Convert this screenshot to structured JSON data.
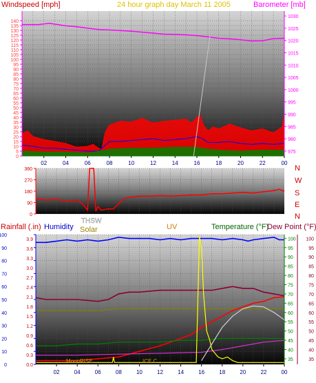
{
  "chart_data": [
    {
      "type": "line",
      "panel": "wind-barometer",
      "title": "24 hour graph day   March 11 2005",
      "left_axis_label": "Windspeed [mph]",
      "right_axis_label": "Barometer [mb]",
      "left_ticks": [
        0,
        5,
        10,
        15,
        20,
        25,
        30,
        35,
        40,
        45,
        50,
        55,
        60,
        65,
        70,
        75,
        80,
        85,
        90,
        95,
        100,
        105,
        110,
        115,
        120,
        125,
        130,
        135,
        140
      ],
      "right_ticks": [
        975,
        980,
        985,
        990,
        995,
        1000,
        1005,
        1010,
        1015,
        1020,
        1025,
        1030
      ],
      "ylim_left": [
        0,
        150
      ],
      "ylim_right": [
        973,
        1032
      ],
      "x_ticks": [
        "02",
        "04",
        "06",
        "08",
        "10",
        "12",
        "14",
        "16",
        "18",
        "20",
        "22",
        "00"
      ],
      "xlim_hours": [
        0,
        24
      ],
      "series": [
        {
          "role": "barometer",
          "color": "#ff00ff",
          "axis": "right",
          "x": [
            0,
            1.5,
            2.5,
            4,
            5,
            7,
            8,
            10,
            12,
            13,
            14,
            15,
            16,
            17,
            18,
            19,
            20,
            21,
            22,
            23,
            24
          ],
          "y": [
            1026.5,
            1026.5,
            1027,
            1026,
            1025.6,
            1024.5,
            1024.3,
            1023.8,
            1023,
            1022.6,
            1022.5,
            1022.3,
            1022,
            1021.5,
            1020.9,
            1020.7,
            1020.3,
            1019.8,
            1019.9,
            1020.8,
            1020.9
          ]
        },
        {
          "role": "gust",
          "color": "#ff0000",
          "axis": "left",
          "fill": true,
          "x": [
            0,
            0.5,
            1,
            2,
            3,
            4,
            5,
            6,
            6.5,
            7,
            7.3,
            7.6,
            8,
            9,
            10,
            11,
            12,
            13,
            14,
            15,
            15.5,
            16,
            16.3,
            16.6,
            17,
            17.5,
            18,
            19,
            20,
            21,
            22,
            23,
            23.8,
            24
          ],
          "y": [
            23,
            26,
            20,
            17,
            15,
            13,
            9,
            10,
            12,
            8,
            7,
            24,
            32,
            36,
            35,
            39,
            34,
            36,
            37,
            38,
            34,
            40,
            42,
            32,
            26,
            30,
            28,
            33,
            29,
            26,
            28,
            24,
            30,
            42
          ]
        },
        {
          "role": "wind-speed",
          "color": "#0000ff",
          "axis": "left",
          "x": [
            0,
            1,
            2,
            3,
            4,
            5,
            6,
            7,
            7.6,
            8,
            9,
            10,
            11,
            12,
            13,
            14,
            15,
            16,
            16.5,
            17,
            18,
            19,
            20,
            21,
            22,
            23,
            24
          ],
          "y": [
            11,
            10,
            8,
            8,
            7,
            6,
            5,
            5,
            11,
            15,
            15,
            16,
            17,
            18,
            16,
            17,
            18,
            20,
            18,
            14,
            14,
            15,
            13,
            12,
            13,
            12,
            13
          ]
        },
        {
          "role": "wind-chill",
          "color": "#008000",
          "axis": "left",
          "fill": true,
          "x": [
            0,
            2,
            4,
            6,
            7.6,
            8,
            10,
            12,
            14,
            16,
            17,
            18,
            20,
            22,
            24
          ],
          "y": [
            5,
            4,
            4,
            3,
            6,
            7,
            8,
            8,
            9,
            9,
            7,
            6,
            5,
            6,
            6
          ]
        }
      ]
    },
    {
      "type": "line",
      "panel": "wind-direction",
      "left_ticks": [
        0,
        90,
        180,
        270,
        360
      ],
      "direction_labels": [
        "N",
        "W",
        "S",
        "E",
        "N"
      ],
      "ylim": [
        0,
        360
      ],
      "series": [
        {
          "role": "wind-direction",
          "color": "#ff0000",
          "x": [
            0,
            1,
            2,
            3,
            4,
            4.5,
            5,
            5.2,
            5.3,
            5.6,
            5.8,
            6,
            6.3,
            6.6,
            7,
            7.5,
            8,
            8.5,
            9,
            10,
            11,
            12,
            13,
            14,
            15,
            16,
            17,
            18,
            19,
            20,
            21,
            22,
            23,
            23.5,
            24
          ],
          "y": [
            120,
            110,
            115,
            100,
            110,
            80,
            30,
            360,
            360,
            360,
            20,
            60,
            30,
            35,
            40,
            40,
            80,
            120,
            130,
            140,
            140,
            145,
            140,
            145,
            150,
            150,
            160,
            160,
            165,
            170,
            165,
            175,
            185,
            195,
            180
          ]
        }
      ]
    },
    {
      "type": "line",
      "panel": "rain-humidity-temperature",
      "labels": {
        "rainfall": "Rainfall (.in)",
        "humidity": "Humidity",
        "thsw": "THSW",
        "solar": "Solar",
        "uv": "UV",
        "temperature": "Temperature (°F)",
        "dew_point": "Dew Point (°F)",
        "moonrise": "MoonRISE",
        "moon_marker": "ICE C"
      },
      "rain_ticks": [
        0,
        0.3,
        0.6,
        0.9,
        1.2,
        1.5,
        1.8,
        2.1,
        2.4,
        2.7,
        3.0,
        3.3,
        3.6,
        3.9
      ],
      "humidity_ticks": [
        0,
        10,
        20,
        30,
        40,
        50,
        60,
        70,
        80,
        90,
        100
      ],
      "temperature_ticks": [
        35,
        40,
        45,
        50,
        55,
        60,
        65,
        70,
        75,
        80,
        85,
        90,
        95,
        100
      ],
      "ylim_humidity": [
        0,
        100
      ],
      "ylim_temperature": [
        32,
        102
      ],
      "series": [
        {
          "role": "humidity",
          "color": "#0000ff",
          "axis": "humidity",
          "x": [
            0,
            1,
            2,
            3,
            4,
            5,
            6,
            7,
            8,
            9,
            10,
            11,
            12,
            13,
            14,
            15,
            16,
            17,
            18,
            19,
            20,
            20.5,
            21,
            22,
            23,
            23.5,
            24
          ],
          "y": [
            94,
            94,
            95,
            96,
            95,
            96,
            95,
            96,
            98,
            97,
            97,
            97,
            96,
            97,
            96,
            97,
            97,
            97,
            96,
            97,
            96,
            95,
            96,
            97,
            98,
            96,
            96
          ]
        },
        {
          "role": "dew-point",
          "color": "#8b0030",
          "axis": "temperature",
          "x": [
            0,
            1,
            2,
            4,
            6,
            7,
            8,
            9,
            10,
            12,
            14,
            16,
            17,
            18,
            19,
            20,
            21,
            22,
            23,
            24
          ],
          "y": [
            68,
            67,
            67,
            67,
            66,
            67,
            70,
            71,
            71,
            72,
            72,
            72,
            72,
            73,
            74,
            73,
            73,
            71,
            70,
            69
          ]
        },
        {
          "role": "thsw",
          "color": "#808000",
          "axis": "temperature",
          "x": [
            0,
            2,
            4,
            6,
            8,
            10,
            12,
            14,
            16,
            18,
            20,
            22,
            24
          ],
          "y": [
            61,
            61,
            61,
            61,
            62,
            62,
            62,
            62,
            62,
            62,
            62,
            62,
            62
          ]
        },
        {
          "role": "rain",
          "color": "#ff0000",
          "axis": "temperature",
          "x": [
            0,
            4,
            6,
            8,
            10,
            12,
            14,
            15,
            16,
            17,
            18,
            19,
            20,
            21,
            22,
            23,
            24
          ],
          "y": [
            34,
            34,
            35,
            36,
            39,
            42,
            46,
            48,
            52,
            55,
            58,
            61,
            63,
            65,
            66,
            68,
            68.5
          ]
        },
        {
          "role": "temperature",
          "color": "#008000",
          "axis": "temperature",
          "x": [
            0,
            2,
            4,
            6,
            8,
            10,
            12,
            14,
            16,
            18,
            20,
            22,
            24
          ],
          "y": [
            42,
            42,
            43,
            43,
            44,
            44,
            44,
            45,
            45,
            46,
            46,
            46,
            46
          ]
        },
        {
          "role": "uv",
          "color": "#cc33cc",
          "axis": "temperature",
          "x": [
            0,
            4,
            8,
            12,
            16,
            18,
            20,
            22,
            24
          ],
          "y": [
            37,
            37,
            37.5,
            38,
            38.5,
            40,
            42,
            44,
            45
          ]
        },
        {
          "role": "solar",
          "color": "#ffff00",
          "axis": "temperature",
          "x": [
            0,
            7.4,
            7.5,
            7.6,
            11,
            12,
            15.5,
            15.8,
            16,
            16.2,
            16.5,
            16.8,
            17,
            17.3,
            17.6,
            18,
            18.5,
            19,
            19.5,
            20,
            24
          ],
          "y": [
            33,
            33,
            36,
            33,
            33,
            33,
            33,
            101,
            95,
            70,
            50,
            45,
            40,
            38,
            36,
            35,
            36,
            34,
            33,
            33,
            33
          ]
        },
        {
          "role": "solar-curve",
          "color": "#d0d0d0",
          "axis": "temperature",
          "x": [
            16,
            17,
            18,
            19,
            20,
            21,
            22,
            23,
            24
          ],
          "y": [
            34,
            43,
            52,
            58,
            62,
            63.5,
            63,
            60,
            56
          ]
        }
      ]
    }
  ]
}
